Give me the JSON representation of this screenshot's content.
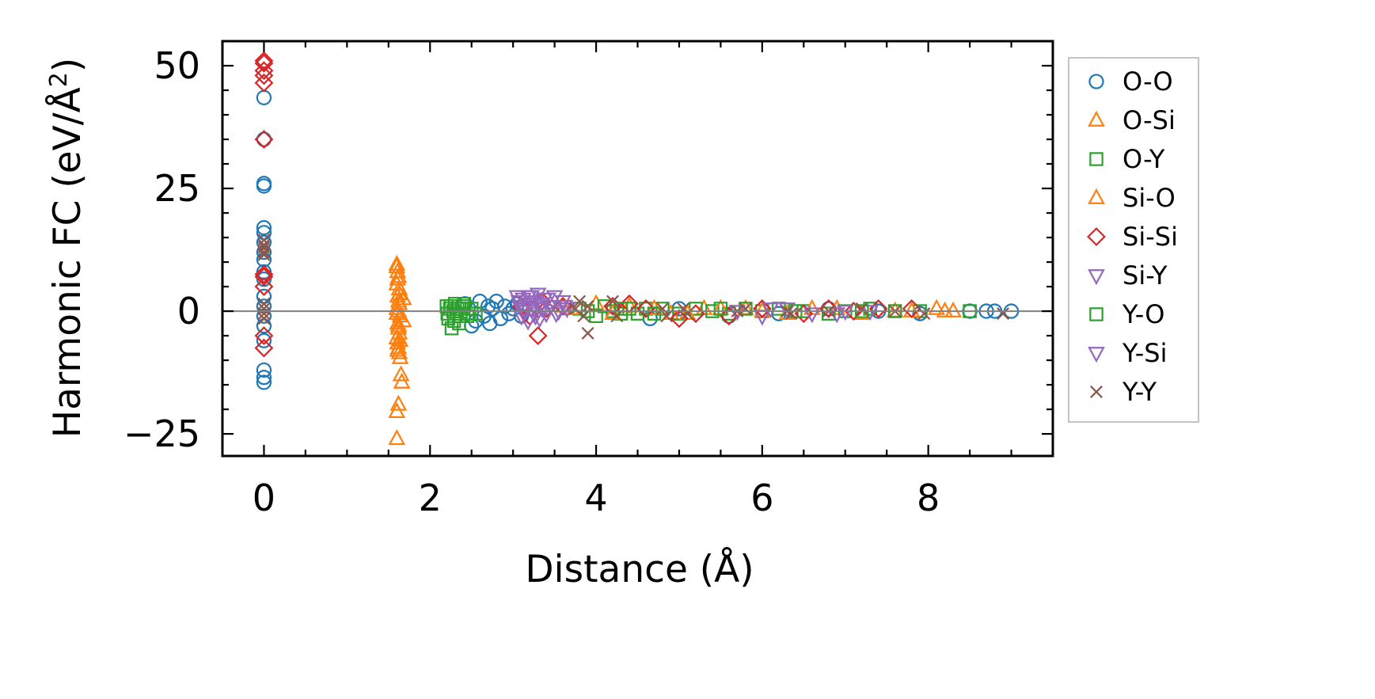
{
  "chart_data": {
    "type": "scatter",
    "xlabel": "Distance (Å)",
    "ylabel_main": "Harmonic FC (eV/Å",
    "ylabel_sup": "2",
    "ylabel_close": ")",
    "xlim": [
      -0.5,
      9.5
    ],
    "ylim": [
      -29.5,
      55
    ],
    "xticks": [
      0,
      2,
      4,
      6,
      8
    ],
    "xtick_labels": [
      "0",
      "2",
      "4",
      "6",
      "8"
    ],
    "yticks": [
      -25,
      0,
      25,
      50
    ],
    "ytick_labels": [
      "−25",
      "0",
      "25",
      "50"
    ],
    "x_minor_step": 0.5,
    "y_minor_step": 5,
    "zero_line": true,
    "grid": false,
    "legend_position": "outside-right",
    "series": [
      {
        "name": "O-O",
        "marker": "circle",
        "color": "#1f77b4",
        "x": [
          0,
          0,
          0,
          0,
          0,
          0,
          0,
          0,
          0,
          0,
          0,
          0,
          0,
          0,
          0,
          0,
          0,
          0,
          0,
          2.42,
          2.5,
          2.55,
          2.6,
          2.65,
          2.7,
          2.72,
          2.75,
          2.8,
          2.85,
          2.9,
          2.95,
          3.0,
          3.05,
          3.1,
          3.2,
          4.65,
          5.0,
          5.6,
          6.2,
          6.8,
          7.4,
          7.9,
          8.5,
          8.7,
          8.8,
          9.0
        ],
        "y": [
          43.5,
          35,
          26,
          25.5,
          17,
          16,
          14,
          12,
          10.5,
          8,
          6.5,
          3,
          1,
          -1,
          -3,
          -6,
          -12,
          -13.5,
          -14.5,
          1.5,
          -3,
          -2,
          2,
          -1,
          1,
          -2.5,
          0.5,
          2,
          -1.5,
          1,
          -0.5,
          0.5,
          1.5,
          -1,
          0.5,
          -1.5,
          0.5,
          -1,
          -0.5,
          0.5,
          0,
          -0.5,
          0,
          0,
          0,
          0
        ]
      },
      {
        "name": "O-Si",
        "marker": "triangle-up",
        "color": "#ff7f0e",
        "x": [
          1.6,
          1.61,
          1.62,
          1.6,
          1.63,
          1.61,
          1.62,
          1.6,
          1.64,
          1.61,
          1.62,
          1.63,
          1.6,
          1.61,
          1.62,
          1.63,
          1.64,
          1.65,
          1.66,
          1.68,
          1.68,
          1.62,
          1.6,
          1.6,
          1.62,
          3.6,
          4.0,
          4.4,
          4.9,
          5.3,
          5.8,
          6.3,
          6.9,
          7.6,
          8.2,
          8.3
        ],
        "y": [
          9.5,
          8,
          7,
          5.5,
          4.5,
          3,
          2,
          0.5,
          -1,
          -2.5,
          -3.5,
          -4.5,
          -5.5,
          -6.5,
          -7.5,
          -8.5,
          -9.5,
          -13,
          -14.5,
          -2,
          2.5,
          -19,
          -20.5,
          -26,
          0,
          1,
          1.5,
          1,
          -0.5,
          0.5,
          0.5,
          -0.5,
          0.5,
          0,
          0,
          0
        ]
      },
      {
        "name": "O-Y",
        "marker": "square",
        "color": "#2ca02c",
        "x": [
          2.2,
          2.22,
          2.24,
          2.26,
          2.28,
          2.3,
          2.32,
          2.35,
          2.38,
          2.4,
          2.45,
          2.5,
          2.55,
          3.8,
          4.0,
          4.1,
          4.2,
          4.3,
          4.4,
          4.5,
          4.6,
          4.8,
          5.0,
          5.2,
          5.4,
          5.6,
          5.8,
          6.0,
          6.2,
          6.5,
          6.8,
          7.0,
          7.3,
          7.6,
          7.9,
          8.5
        ],
        "y": [
          1,
          -1.5,
          0.5,
          -3.5,
          0,
          1.5,
          -0.5,
          -2.5,
          0.5,
          1,
          -1,
          0.5,
          -0.5,
          0.5,
          -1,
          1,
          0,
          -0.5,
          0.5,
          -0.5,
          0.5,
          0.5,
          -0.5,
          0.5,
          0,
          -0.5,
          0.5,
          0,
          0.5,
          0,
          -0.5,
          0,
          0.5,
          0,
          0,
          0
        ]
      },
      {
        "name": "Si-O",
        "marker": "triangle-up",
        "color": "#ff7f0e",
        "x": [
          1.61,
          1.63,
          1.6,
          1.62,
          1.64,
          1.61,
          1.63,
          1.6,
          3.7,
          4.2,
          4.7,
          5.1,
          5.5,
          6.0,
          6.6,
          7.2,
          7.8,
          8.1
        ],
        "y": [
          6.5,
          3.5,
          -0.5,
          -3,
          -6,
          -8,
          1.5,
          9,
          0.5,
          -0.5,
          0.5,
          -0.5,
          0.5,
          0,
          0.5,
          -0.5,
          0,
          0.5
        ]
      },
      {
        "name": "Si-Si",
        "marker": "diamond",
        "color": "#d62728",
        "x": [
          0,
          0,
          0,
          0,
          0,
          0,
          0,
          0,
          0,
          0,
          0,
          3.1,
          3.2,
          3.3,
          3.35,
          3.4,
          3.6,
          4.2,
          4.4,
          4.6,
          5.0,
          5.2,
          5.6,
          6.0,
          6.5,
          6.8,
          7.1,
          7.4,
          7.8
        ],
        "y": [
          51,
          50.5,
          49,
          48,
          46.5,
          35,
          7.5,
          7,
          5,
          -5,
          -7.5,
          1,
          -1,
          -5,
          2,
          0.5,
          1,
          1,
          1.5,
          0.5,
          -1.5,
          -0.5,
          -1,
          0.5,
          -0.5,
          0.5,
          0,
          0.5,
          0.5
        ]
      },
      {
        "name": "Si-Y",
        "marker": "triangle-down",
        "color": "#9467bd",
        "x": [
          3.05,
          3.08,
          3.1,
          3.12,
          3.15,
          3.18,
          3.2,
          3.22,
          3.25,
          3.28,
          3.3,
          3.32,
          3.35,
          3.38,
          3.4,
          3.45,
          3.5,
          3.55,
          3.6,
          3.65,
          5.7,
          6.0,
          6.3,
          6.6,
          7.0,
          7.3
        ],
        "y": [
          3,
          1,
          -1,
          2.5,
          0,
          -2,
          1.5,
          3,
          -0.5,
          2,
          3.5,
          -1.5,
          0.5,
          2.5,
          -0.5,
          1,
          3,
          0,
          2,
          0.5,
          0,
          -1,
          0.5,
          -0.5,
          0,
          0
        ]
      },
      {
        "name": "Y-O",
        "marker": "square",
        "color": "#2ca02c",
        "x": [
          2.21,
          2.25,
          2.29,
          2.33,
          2.37,
          2.41,
          2.47,
          3.9,
          4.3,
          4.7,
          5.5,
          6.4,
          7.2
        ],
        "y": [
          -0.5,
          1,
          -2,
          0.5,
          -1,
          1.5,
          -0.5,
          0,
          0.5,
          -0.5,
          0.5,
          0,
          0
        ]
      },
      {
        "name": "Y-Si",
        "marker": "triangle-down",
        "color": "#9467bd",
        "x": [
          3.07,
          3.13,
          3.19,
          3.27,
          3.34,
          3.42,
          3.52,
          3.62,
          6.1,
          6.9
        ],
        "y": [
          2,
          0.5,
          3,
          -1,
          1.5,
          2.5,
          -0.5,
          1,
          0.5,
          -0.5
        ]
      },
      {
        "name": "Y-Y",
        "marker": "x",
        "color": "#8c564b",
        "x": [
          0,
          0,
          0,
          0,
          0,
          0,
          0,
          0,
          0,
          3.75,
          3.8,
          3.85,
          3.9,
          3.9,
          4.2,
          4.25,
          4.8,
          4.85,
          5.05,
          5.1,
          5.7,
          5.8,
          6.3,
          6.35,
          6.8,
          7.2,
          7.6,
          7.95,
          8.9
        ],
        "y": [
          14.5,
          13.5,
          12,
          11.5,
          1.5,
          0.5,
          -0.5,
          -1.5,
          13,
          0.5,
          2,
          -1,
          1,
          -4.5,
          2,
          -1,
          0.5,
          -1,
          0.5,
          -0.5,
          0,
          0.5,
          0,
          -0.5,
          0,
          0.5,
          0,
          -0.5,
          -0.5
        ]
      }
    ]
  }
}
